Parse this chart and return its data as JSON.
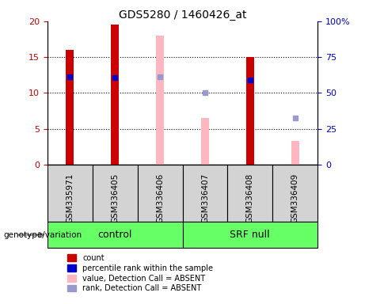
{
  "title": "GDS5280 / 1460426_at",
  "samples": [
    "GSM335971",
    "GSM336405",
    "GSM336406",
    "GSM336407",
    "GSM336408",
    "GSM336409"
  ],
  "count_values": [
    16.0,
    19.5,
    null,
    null,
    15.0,
    null
  ],
  "rank_values": [
    12.2,
    12.1,
    null,
    null,
    11.8,
    null
  ],
  "absent_value": [
    null,
    null,
    18.0,
    6.5,
    null,
    3.3
  ],
  "absent_rank": [
    null,
    null,
    12.3,
    10.0,
    null,
    6.5
  ],
  "groups": [
    {
      "label": "control",
      "span": [
        0,
        2
      ]
    },
    {
      "label": "SRF null",
      "span": [
        3,
        5
      ]
    }
  ],
  "ylim_left": [
    0,
    20
  ],
  "ylim_right": [
    0,
    100
  ],
  "yticks_left": [
    0,
    5,
    10,
    15,
    20
  ],
  "yticks_right": [
    0,
    25,
    50,
    75,
    100
  ],
  "ytick_labels_right": [
    "0",
    "25",
    "50",
    "75",
    "100%"
  ],
  "bar_color_count": "#CC0000",
  "bar_color_absent": "#FFB6C1",
  "dot_color_rank": "#0000CC",
  "dot_color_absent_rank": "#9999CC",
  "bar_width": 0.18,
  "group_color": "#66FF66",
  "bg_color": "#D3D3D3",
  "left_tick_color": "#CC0000",
  "right_tick_color": "#0000CC",
  "legend_items": [
    {
      "label": "count",
      "color": "#CC0000"
    },
    {
      "label": "percentile rank within the sample",
      "color": "#0000CC"
    },
    {
      "label": "value, Detection Call = ABSENT",
      "color": "#FFB6C1"
    },
    {
      "label": "rank, Detection Call = ABSENT",
      "color": "#9999CC"
    }
  ]
}
